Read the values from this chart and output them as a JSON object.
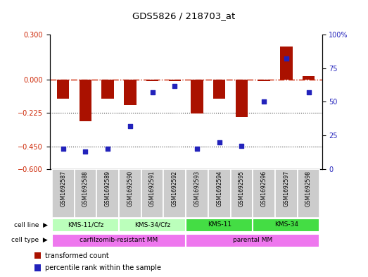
{
  "title": "GDS5826 / 218703_at",
  "samples": [
    "GSM1692587",
    "GSM1692588",
    "GSM1692589",
    "GSM1692590",
    "GSM1692591",
    "GSM1692592",
    "GSM1692593",
    "GSM1692594",
    "GSM1692595",
    "GSM1692596",
    "GSM1692597",
    "GSM1692598"
  ],
  "transformed_count": [
    -0.13,
    -0.28,
    -0.13,
    -0.17,
    -0.01,
    -0.01,
    -0.23,
    -0.13,
    -0.25,
    -0.01,
    0.22,
    0.02
  ],
  "percentile_rank": [
    15,
    13,
    15,
    32,
    57,
    62,
    15,
    20,
    17,
    50,
    82,
    57
  ],
  "ylim_left": [
    -0.6,
    0.3
  ],
  "ylim_right": [
    0,
    100
  ],
  "yticks_left": [
    0.3,
    0,
    -0.225,
    -0.45,
    -0.6
  ],
  "yticks_right": [
    100,
    75,
    50,
    25,
    0
  ],
  "hlines": [
    -0.225,
    -0.45
  ],
  "cell_line_groups": [
    {
      "label": "KMS-11/Cfz",
      "start": 0,
      "end": 3,
      "color": "#bbffbb"
    },
    {
      "label": "KMS-34/Cfz",
      "start": 3,
      "end": 6,
      "color": "#bbffbb"
    },
    {
      "label": "KMS-11",
      "start": 6,
      "end": 9,
      "color": "#44dd44"
    },
    {
      "label": "KMS-34",
      "start": 9,
      "end": 12,
      "color": "#44dd44"
    }
  ],
  "cell_type_groups": [
    {
      "label": "carfilzomib-resistant MM",
      "start": 0,
      "end": 6,
      "color": "#ee77ee"
    },
    {
      "label": "parental MM",
      "start": 6,
      "end": 12,
      "color": "#ee77ee"
    }
  ],
  "bar_color": "#aa1100",
  "dot_color": "#2222bb",
  "zero_line_color": "#cc2200",
  "hline_color": "#444444",
  "sample_box_color": "#cccccc",
  "legend_items": [
    {
      "label": "transformed count",
      "color": "#aa1100"
    },
    {
      "label": "percentile rank within the sample",
      "color": "#2222bb"
    }
  ]
}
